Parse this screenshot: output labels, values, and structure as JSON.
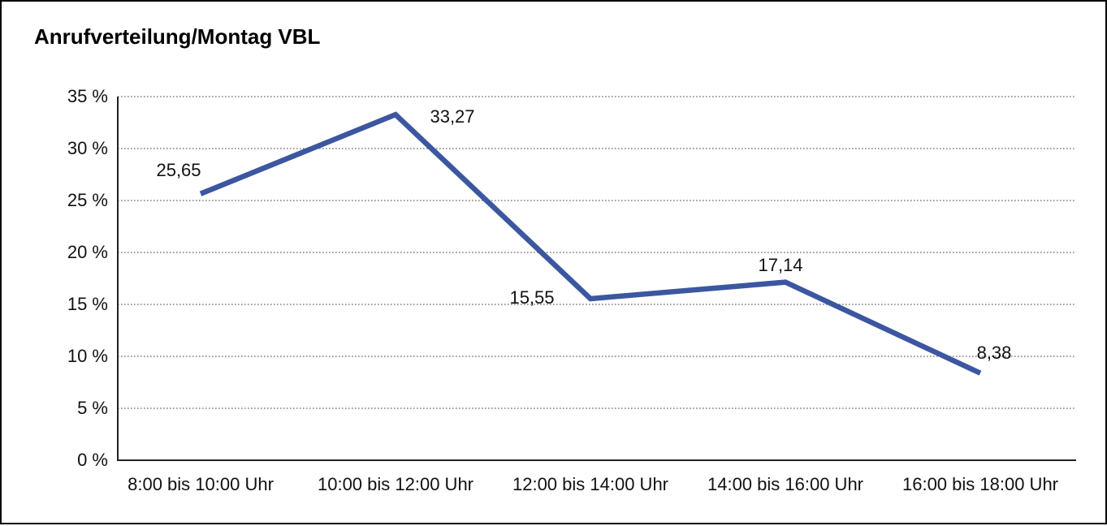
{
  "title": "Anrufverteilung/Montag VBL",
  "chart_data": {
    "type": "line",
    "title": "Anrufverteilung/Montag VBL",
    "categories": [
      "8:00 bis 10:00 Uhr",
      "10:00 bis 12:00 Uhr",
      "12:00 bis 14:00 Uhr",
      "14:00 bis 16:00 Uhr",
      "16:00 bis 18:00 Uhr"
    ],
    "series": [
      {
        "values": [
          25.65,
          33.27,
          15.55,
          17.14,
          8.38
        ],
        "value_labels": [
          "25,65",
          "33,27",
          "15,55",
          "17,14",
          "8,38"
        ],
        "color": "#3c57a0"
      }
    ],
    "xlabel": "",
    "ylabel": "",
    "ylim": [
      0,
      35
    ],
    "y_tick_step": 5,
    "y_tick_labels": [
      "0 %",
      "5 %",
      "10 %",
      "15 %",
      "20 %",
      "25 %",
      "30 %",
      "35 %"
    ],
    "y_tick_suffix": " %",
    "grid": "horizontal-dotted",
    "legend": "none",
    "markers": "none",
    "axis_color": "#222222",
    "gridline_color": "#666666",
    "background": "#ffffff"
  }
}
